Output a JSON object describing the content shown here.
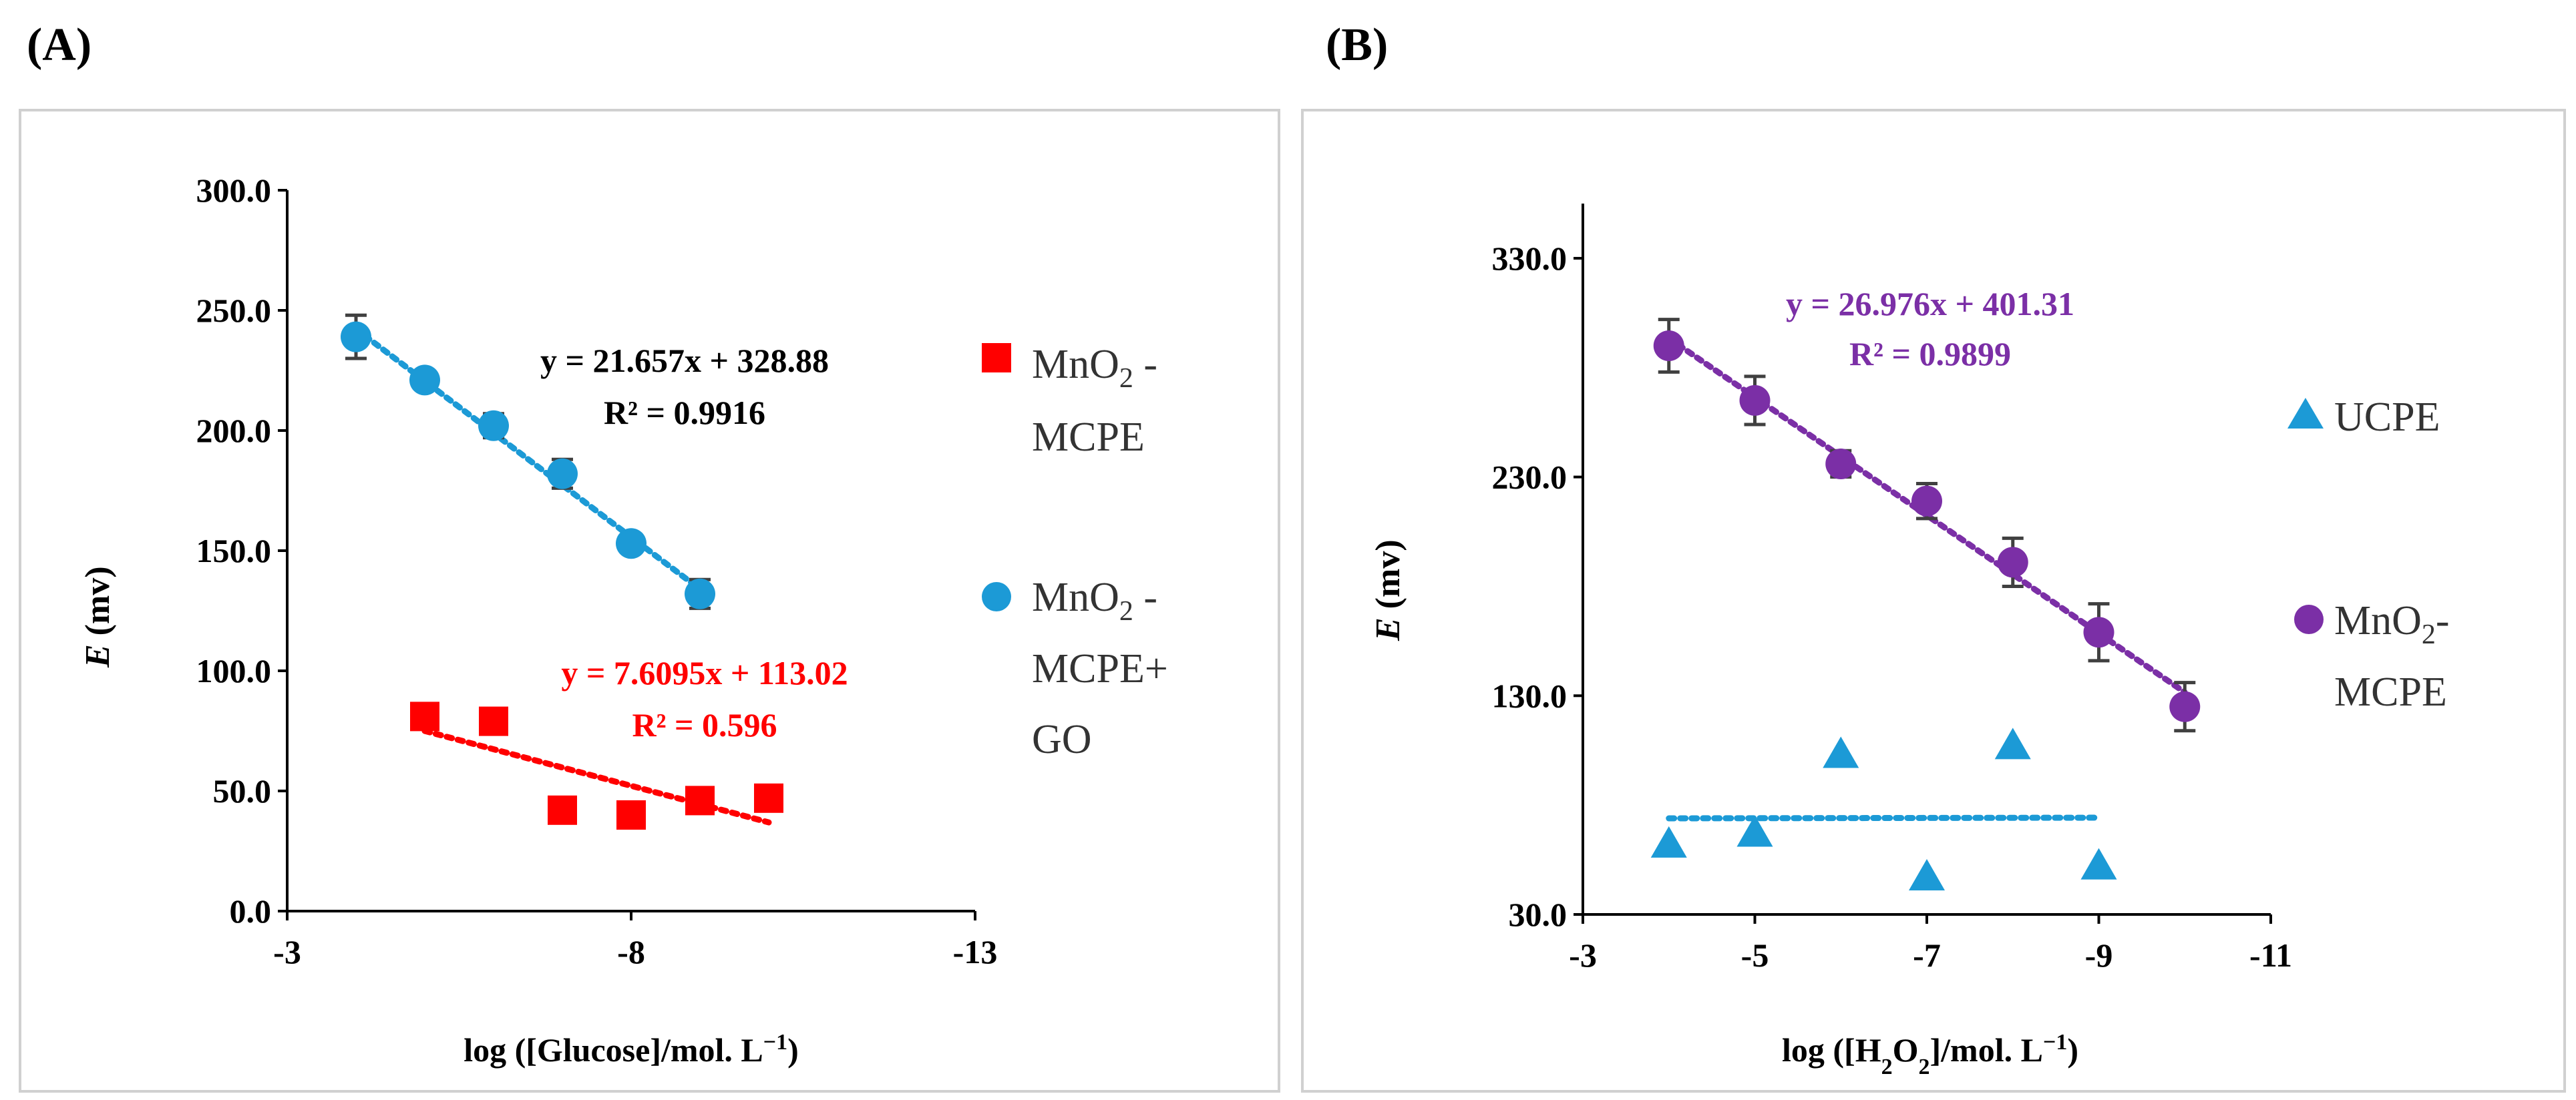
{
  "panel_a": {
    "letter": "(A)"
  },
  "panel_b": {
    "letter": "(B)"
  },
  "chart_data": [
    {
      "type": "scatter",
      "xlabel": "log ([Glucose]/mol. L⁻¹)",
      "ylabel": "E (mv)",
      "x_reversed": true,
      "xlim": [
        -3,
        -13
      ],
      "ylim": [
        0,
        300
      ],
      "xticks": [
        -3,
        -8,
        -13
      ],
      "yticks": [
        0,
        50,
        100,
        150,
        200,
        250,
        300
      ],
      "ytick_labels": [
        "0.0",
        "50.0",
        "100.0",
        "150.0",
        "200.0",
        "250.0",
        "300.0"
      ],
      "xtick_labels": [
        "-3",
        "-8",
        "-13"
      ],
      "grid": false,
      "legend_position": "right",
      "series": [
        {
          "name": "MnO2 - MCPE",
          "legend_lines": [
            "MnO",
            "2",
            " -",
            "MCPE"
          ],
          "marker": "square",
          "color": "#ff0000",
          "x": [
            -5,
            -6,
            -7,
            -8,
            -9,
            -10
          ],
          "y": [
            81,
            79,
            42,
            40,
            46,
            47
          ],
          "err": [
            0,
            0,
            0,
            0,
            0,
            0
          ],
          "trendline": {
            "slope": 7.6095,
            "intercept": 113.02,
            "x_range": [
              -5,
              -10
            ]
          },
          "equation": "y = 7.6095x + 113.02",
          "r2": "R² = 0.596"
        },
        {
          "name": "MnO2 - MCPE+ GO",
          "legend_lines": [
            "MnO",
            "2",
            " -",
            "MCPE+",
            "GO"
          ],
          "marker": "circle",
          "color": "#1c9ad6",
          "x": [
            -4,
            -5,
            -6,
            -7,
            -8,
            -9
          ],
          "y": [
            239,
            221,
            202,
            182,
            153,
            132
          ],
          "err": [
            9,
            3,
            5,
            6,
            3,
            6
          ],
          "trendline": {
            "slope": 21.657,
            "intercept": 328.88,
            "x_range": [
              -4,
              -9
            ]
          },
          "equation": "y = 21.657x + 328.88",
          "r2": "R² = 0.9916"
        }
      ]
    },
    {
      "type": "scatter",
      "xlabel": "log ([H2O2]/mol. L⁻¹)",
      "ylabel": "E (mv)",
      "x_reversed": true,
      "xlim": [
        -3,
        -11
      ],
      "ylim": [
        30,
        355
      ],
      "xticks": [
        -3,
        -5,
        -7,
        -9,
        -11
      ],
      "yticks": [
        30,
        130,
        230,
        330
      ],
      "ytick_labels": [
        "30.0",
        "130.0",
        "230.0",
        "330.0"
      ],
      "xtick_labels": [
        "-3",
        "-5",
        "-7",
        "-9",
        "-11"
      ],
      "grid": false,
      "legend_position": "right",
      "series": [
        {
          "name": "UCPE",
          "legend_lines": [
            "UCPE"
          ],
          "marker": "triangle",
          "color": "#1c9ad6",
          "x": [
            -4,
            -5,
            -6,
            -7,
            -8,
            -9
          ],
          "y": [
            63,
            68,
            104,
            48,
            108,
            53
          ],
          "err": [
            0,
            0,
            0,
            0,
            0,
            0
          ],
          "trendline": {
            "slope": -0.06,
            "intercept": 73.7,
            "x_range": [
              -4,
              -9
            ]
          }
        },
        {
          "name": "MnO2 - MCPE",
          "legend_lines": [
            "MnO",
            "2",
            "-",
            "MCPE"
          ],
          "marker": "circle",
          "color": "#7b2fa6",
          "x": [
            -4,
            -5,
            -6,
            -7,
            -8,
            -9,
            -10
          ],
          "y": [
            290,
            265,
            236,
            219,
            191,
            159,
            125
          ],
          "err": [
            12,
            11,
            6,
            8,
            11,
            13,
            11
          ],
          "trendline": {
            "slope": 26.976,
            "intercept": 401.31,
            "x_range": [
              -4,
              -10
            ]
          },
          "equation": "y = 26.976x + 401.31",
          "r2": "R² = 0.9899"
        }
      ]
    }
  ]
}
